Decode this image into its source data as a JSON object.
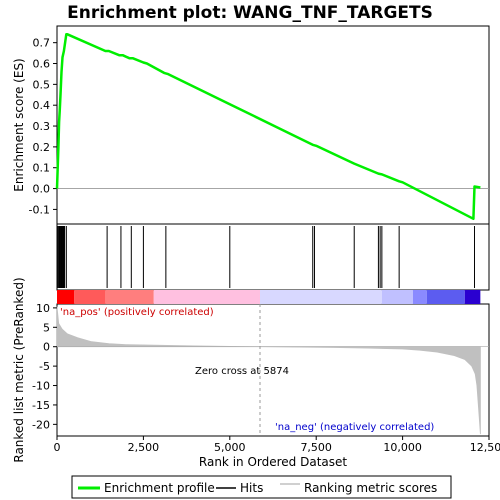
{
  "chart_data": {
    "type": "line",
    "title": "Enrichment plot: WANG_TNF_TARGETS",
    "top_panel": {
      "ylabel": "Enrichment score (ES)",
      "ylim": [
        -0.17,
        0.78
      ],
      "yticks": [
        -0.1,
        0.0,
        0.1,
        0.2,
        0.3,
        0.4,
        0.5,
        0.6,
        0.7
      ],
      "ytick_labels": [
        "-0.1",
        "0.0",
        "0.1",
        "0.2",
        "0.3",
        "0.4",
        "0.5",
        "0.6",
        "0.7"
      ],
      "series": [
        {
          "name": "Enrichment profile",
          "color": "#00ee00",
          "x": [
            0,
            20,
            40,
            60,
            80,
            100,
            130,
            160,
            200,
            270,
            300,
            1400,
            1500,
            1800,
            1900,
            2100,
            2200,
            2500,
            2600,
            3100,
            3200,
            5000,
            7400,
            7500,
            8600,
            9300,
            9400,
            9900,
            10000,
            12050,
            12080,
            12250
          ],
          "y": [
            0.0,
            0.1,
            0.2,
            0.32,
            0.38,
            0.45,
            0.56,
            0.63,
            0.66,
            0.74,
            0.74,
            0.66,
            0.66,
            0.64,
            0.64,
            0.625,
            0.625,
            0.605,
            0.6,
            0.555,
            0.55,
            0.405,
            0.21,
            0.205,
            0.12,
            0.072,
            0.068,
            0.035,
            0.03,
            -0.145,
            0.01,
            0.005
          ]
        }
      ]
    },
    "hits": {
      "name": "Hits",
      "x": [
        30,
        60,
        80,
        100,
        120,
        140,
        160,
        180,
        200,
        220,
        270,
        1450,
        1850,
        2150,
        2500,
        3150,
        5000,
        7400,
        7450,
        8600,
        9300,
        9350,
        9400,
        9900,
        12080
      ]
    },
    "middle_band": {
      "segments": [
        {
          "x0": 0,
          "x1": 500,
          "color": "#ff0000"
        },
        {
          "x0": 500,
          "x1": 1400,
          "color": "#ff5a5a"
        },
        {
          "x0": 1400,
          "x1": 2800,
          "color": "#ff7e7e"
        },
        {
          "x0": 2800,
          "x1": 5874,
          "color": "#ffc0e0"
        },
        {
          "x0": 5874,
          "x1": 9400,
          "color": "#d8d8ff"
        },
        {
          "x0": 9400,
          "x1": 10300,
          "color": "#c0c0ff"
        },
        {
          "x0": 10300,
          "x1": 10700,
          "color": "#8a8aff"
        },
        {
          "x0": 10700,
          "x1": 11800,
          "color": "#5c5cf0"
        },
        {
          "x0": 11800,
          "x1": 12250,
          "color": "#2a00d0"
        }
      ]
    },
    "bottom_panel": {
      "ylabel": "Ranked list metric (PreRanked)",
      "ylim": [
        -23,
        11
      ],
      "yticks": [
        10,
        5,
        0,
        -5,
        -10,
        -15,
        -20
      ],
      "ytick_labels": [
        "10",
        "5",
        "0",
        "-5",
        "-10",
        "-15",
        "-20"
      ],
      "series": [
        {
          "name": "Ranking metric scores",
          "color": "#c0c0c0",
          "x": [
            0,
            50,
            150,
            300,
            600,
            1000,
            1500,
            2000,
            3000,
            4000,
            5000,
            5874,
            7000,
            8000,
            9000,
            10000,
            10500,
            11000,
            11500,
            11800,
            12000,
            12100,
            12150,
            12200,
            12250
          ],
          "y": [
            10.3,
            6.0,
            4.5,
            3.3,
            2.3,
            1.3,
            0.8,
            0.55,
            0.35,
            0.2,
            0.08,
            0.0,
            -0.1,
            -0.2,
            -0.35,
            -0.6,
            -0.9,
            -1.4,
            -2.3,
            -3.3,
            -5.0,
            -7.0,
            -10.0,
            -16.0,
            -22.5
          ]
        }
      ],
      "zero_cross_label": "Zero cross at 5874",
      "zero_cross_x": 5874,
      "pos_label": "'na_pos' (positively correlated)",
      "neg_label": "'na_neg' (negatively correlated)"
    },
    "xlabel": "Rank in Ordered Dataset",
    "xlim": [
      0,
      12500
    ],
    "xticks": [
      0,
      2500,
      5000,
      7500,
      10000,
      12500
    ],
    "xtick_labels": [
      "0",
      "2,500",
      "5,000",
      "7,500",
      "10,000",
      "12,500"
    ],
    "legend": {
      "placement": "bottom",
      "entries": [
        {
          "label": "Enrichment profile",
          "color": "#00ee00"
        },
        {
          "label": "Hits",
          "color": "#000000"
        },
        {
          "label": "Ranking metric scores",
          "color": "#c0c0c0"
        }
      ]
    }
  }
}
